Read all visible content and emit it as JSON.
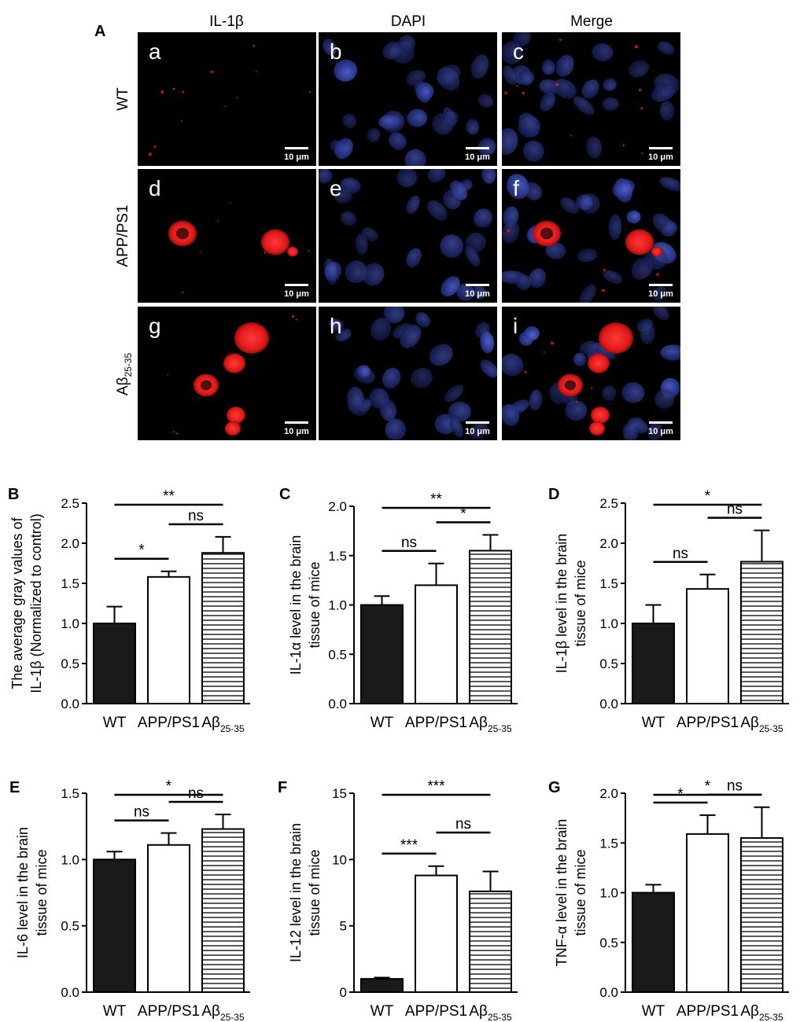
{
  "panel_a": {
    "label": "A",
    "column_headers": [
      "IL-1β",
      "DAPI",
      "Merge"
    ],
    "row_labels": [
      {
        "main": "WT",
        "sub": ""
      },
      {
        "main": "APP/PS1",
        "sub": ""
      },
      {
        "main": "Aβ",
        "sub": "25-35"
      }
    ],
    "panel_letters": [
      "a",
      "b",
      "c",
      "d",
      "e",
      "f",
      "g",
      "h",
      "i"
    ],
    "scale_bar_label": "10 μm",
    "colors": {
      "red_channel": "#e81a1a",
      "blue_channel": "#2f3fb0"
    }
  },
  "chart_data": [
    {
      "panel": "B",
      "type": "bar",
      "categories": [
        {
          "main": "WT",
          "sub": ""
        },
        {
          "main": "APP/PS1",
          "sub": ""
        },
        {
          "main": "Aβ",
          "sub": "25-35"
        }
      ],
      "values": [
        1.0,
        1.58,
        1.88
      ],
      "errors": [
        0.21,
        0.07,
        0.2
      ],
      "ylabel_lines": [
        "The average gray values of",
        "IL-1β (Normalized to control)"
      ],
      "ylim": [
        0,
        2.5
      ],
      "yticks": [
        "0.0",
        "0.5",
        "1.0",
        "1.5",
        "2.0",
        "2.5"
      ],
      "significance": [
        {
          "from": 0,
          "to": 1,
          "label": "*"
        },
        {
          "from": 1,
          "to": 2,
          "label": "ns"
        },
        {
          "from": 0,
          "to": 2,
          "label": "**"
        }
      ]
    },
    {
      "panel": "C",
      "type": "bar",
      "categories": [
        {
          "main": "WT",
          "sub": ""
        },
        {
          "main": "APP/PS1",
          "sub": ""
        },
        {
          "main": "Aβ",
          "sub": "25-35"
        }
      ],
      "values": [
        1.0,
        1.2,
        1.55
      ],
      "errors": [
        0.09,
        0.22,
        0.16
      ],
      "ylabel_lines": [
        "IL-1α level in the brain",
        "tissue of mice"
      ],
      "ylim": [
        0,
        2.0
      ],
      "yticks": [
        "0.0",
        "0.5",
        "1.0",
        "1.5",
        "2.0"
      ],
      "significance": [
        {
          "from": 0,
          "to": 1,
          "label": "ns"
        },
        {
          "from": 1,
          "to": 2,
          "label": "*"
        },
        {
          "from": 0,
          "to": 2,
          "label": "**"
        }
      ]
    },
    {
      "panel": "D",
      "type": "bar",
      "categories": [
        {
          "main": "WT",
          "sub": ""
        },
        {
          "main": "APP/PS1",
          "sub": ""
        },
        {
          "main": "Aβ",
          "sub": "25-35"
        }
      ],
      "values": [
        1.0,
        1.43,
        1.77
      ],
      "errors": [
        0.23,
        0.18,
        0.39
      ],
      "ylabel_lines": [
        "IL-1β level in the brain",
        "tissue of mice"
      ],
      "ylim": [
        0,
        2.5
      ],
      "yticks": [
        "0.0",
        "0.5",
        "1.0",
        "1.5",
        "2.0",
        "2.5"
      ],
      "significance": [
        {
          "from": 0,
          "to": 1,
          "label": "ns"
        },
        {
          "from": 1,
          "to": 2,
          "label": "ns"
        },
        {
          "from": 0,
          "to": 2,
          "label": "*"
        }
      ]
    },
    {
      "panel": "E",
      "type": "bar",
      "categories": [
        {
          "main": "WT",
          "sub": ""
        },
        {
          "main": "APP/PS1",
          "sub": ""
        },
        {
          "main": "Aβ",
          "sub": "25-35"
        }
      ],
      "values": [
        1.0,
        1.11,
        1.23
      ],
      "errors": [
        0.06,
        0.09,
        0.11
      ],
      "ylabel_lines": [
        "IL-6 level in the brain",
        "tissue of mice"
      ],
      "ylim": [
        0,
        1.5
      ],
      "yticks": [
        "0.0",
        "0.5",
        "1.0",
        "1.5"
      ],
      "significance": [
        {
          "from": 0,
          "to": 1,
          "label": "ns"
        },
        {
          "from": 1,
          "to": 2,
          "label": "ns"
        },
        {
          "from": 0,
          "to": 2,
          "label": "*"
        }
      ]
    },
    {
      "panel": "F",
      "type": "bar",
      "categories": [
        {
          "main": "WT",
          "sub": ""
        },
        {
          "main": "APP/PS1",
          "sub": ""
        },
        {
          "main": "Aβ",
          "sub": "25-35"
        }
      ],
      "values": [
        1.0,
        8.8,
        7.6
      ],
      "errors": [
        0.1,
        0.7,
        1.5
      ],
      "ylabel_lines": [
        "IL-12 level in the brain",
        "tissue of mice"
      ],
      "ylim": [
        0,
        15
      ],
      "yticks": [
        "0",
        "5",
        "10",
        "15"
      ],
      "significance": [
        {
          "from": 0,
          "to": 1,
          "label": "***"
        },
        {
          "from": 1,
          "to": 2,
          "label": "ns"
        },
        {
          "from": 0,
          "to": 2,
          "label": "***"
        }
      ]
    },
    {
      "panel": "G",
      "type": "bar",
      "categories": [
        {
          "main": "WT",
          "sub": ""
        },
        {
          "main": "APP/PS1",
          "sub": ""
        },
        {
          "main": "Aβ",
          "sub": "25-35"
        }
      ],
      "values": [
        1.0,
        1.59,
        1.55
      ],
      "errors": [
        0.08,
        0.19,
        0.31
      ],
      "ylabel_lines": [
        "TNF-α level in the brain",
        "tissue of mice"
      ],
      "ylim": [
        0,
        2.0
      ],
      "yticks": [
        "0.0",
        "0.5",
        "1.0",
        "1.5",
        "2.0"
      ],
      "significance": [
        {
          "from": 0,
          "to": 1,
          "label": "*"
        },
        {
          "from": 1,
          "to": 2,
          "label": "ns"
        },
        {
          "from": 0,
          "to": 2,
          "label": "*"
        }
      ]
    }
  ]
}
